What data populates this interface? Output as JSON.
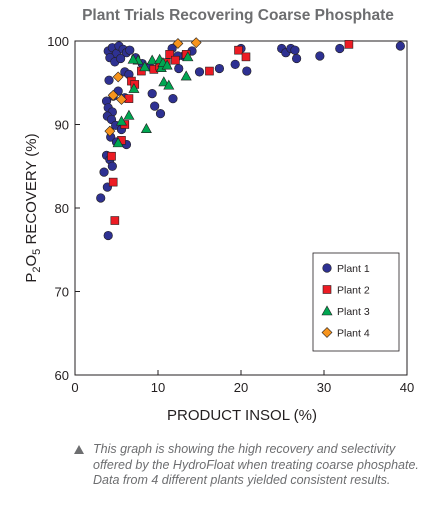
{
  "chart_data": {
    "type": "scatter",
    "title": "Plant Trials Recovering Coarse Phosphate",
    "xlabel": "PRODUCT INSOL (%)",
    "ylabel": {
      "p1": "P",
      "s1": "2",
      "p2": "O",
      "s2": "5",
      "p3": " RECOVERY (%)"
    },
    "xlim": [
      0,
      40
    ],
    "ylim": [
      60,
      100
    ],
    "xticks": [
      "0",
      "10",
      "20",
      "30",
      "40"
    ],
    "yticks": [
      "60",
      "70",
      "80",
      "90",
      "100"
    ],
    "legend_position": "lower-right",
    "grid": false,
    "series": [
      {
        "name": "Plant 1",
        "marker": "circle",
        "color": "#2e3192",
        "points": [
          [
            4.0,
            98.8
          ],
          [
            4.5,
            99.2
          ],
          [
            5.0,
            98.5
          ],
          [
            5.3,
            99.4
          ],
          [
            5.8,
            99.0
          ],
          [
            6.2,
            98.6
          ],
          [
            6.6,
            98.9
          ],
          [
            7.3,
            98.0
          ],
          [
            8.1,
            97.3
          ],
          [
            9.0,
            96.9
          ],
          [
            4.2,
            98.0
          ],
          [
            4.8,
            97.5
          ],
          [
            5.5,
            97.9
          ],
          [
            6.0,
            96.3
          ],
          [
            6.5,
            96.0
          ],
          [
            4.1,
            95.3
          ],
          [
            5.2,
            94.0
          ],
          [
            6.0,
            93.2
          ],
          [
            4.6,
            93.4
          ],
          [
            3.8,
            92.8
          ],
          [
            4.0,
            92.0
          ],
          [
            4.5,
            91.5
          ],
          [
            3.9,
            91.0
          ],
          [
            4.4,
            90.6
          ],
          [
            4.9,
            89.9
          ],
          [
            5.6,
            89.4
          ],
          [
            4.3,
            88.5
          ],
          [
            5.0,
            87.9
          ],
          [
            6.2,
            87.6
          ],
          [
            3.8,
            86.3
          ],
          [
            4.2,
            85.8
          ],
          [
            4.5,
            85.0
          ],
          [
            3.5,
            84.3
          ],
          [
            3.9,
            82.5
          ],
          [
            3.1,
            81.2
          ],
          [
            4.0,
            76.7
          ],
          [
            9.3,
            93.7
          ],
          [
            9.6,
            92.2
          ],
          [
            10.3,
            91.3
          ],
          [
            11.8,
            93.1
          ],
          [
            12.5,
            96.7
          ],
          [
            13.1,
            98.2
          ],
          [
            14.1,
            98.8
          ],
          [
            15.0,
            96.3
          ],
          [
            17.4,
            96.7
          ],
          [
            19.3,
            97.2
          ],
          [
            20.0,
            99.1
          ],
          [
            20.7,
            96.4
          ],
          [
            24.9,
            99.1
          ],
          [
            25.4,
            98.6
          ],
          [
            26.0,
            99.1
          ],
          [
            26.5,
            98.9
          ],
          [
            26.7,
            97.9
          ],
          [
            29.5,
            98.2
          ],
          [
            31.9,
            99.1
          ],
          [
            39.2,
            99.4
          ],
          [
            11.7,
            99.1
          ],
          [
            12.4,
            98.2
          ]
        ]
      },
      {
        "name": "Plant 2",
        "marker": "square",
        "color": "#ed1c24",
        "points": [
          [
            4.4,
            86.2
          ],
          [
            4.6,
            83.1
          ],
          [
            4.8,
            78.5
          ],
          [
            5.6,
            88.1
          ],
          [
            6.0,
            90.0
          ],
          [
            6.5,
            93.1
          ],
          [
            6.8,
            95.2
          ],
          [
            7.2,
            94.8
          ],
          [
            8.0,
            96.4
          ],
          [
            9.5,
            96.6
          ],
          [
            10.2,
            97.0
          ],
          [
            11.0,
            97.4
          ],
          [
            11.4,
            98.4
          ],
          [
            12.1,
            97.7
          ],
          [
            13.4,
            98.4
          ],
          [
            16.2,
            96.4
          ],
          [
            19.7,
            98.9
          ],
          [
            20.6,
            98.1
          ],
          [
            33.0,
            99.6
          ]
        ]
      },
      {
        "name": "Plant 3",
        "marker": "triangle",
        "color": "#00a651",
        "points": [
          [
            5.2,
            87.8
          ],
          [
            5.6,
            90.4
          ],
          [
            6.5,
            91.1
          ],
          [
            7.1,
            94.3
          ],
          [
            7.6,
            97.7
          ],
          [
            8.4,
            96.9
          ],
          [
            9.3,
            97.7
          ],
          [
            10.2,
            97.8
          ],
          [
            10.4,
            96.8
          ],
          [
            10.7,
            95.1
          ],
          [
            10.6,
            97.4
          ],
          [
            11.1,
            97.1
          ],
          [
            11.3,
            94.7
          ],
          [
            13.6,
            98.1
          ],
          [
            8.6,
            89.5
          ],
          [
            13.4,
            95.8
          ],
          [
            7.0,
            97.8
          ]
        ]
      },
      {
        "name": "Plant 4",
        "marker": "diamond",
        "color": "#f7941d",
        "points": [
          [
            4.2,
            89.2
          ],
          [
            4.6,
            93.5
          ],
          [
            5.2,
            95.7
          ],
          [
            5.6,
            93.0
          ],
          [
            12.4,
            99.7
          ],
          [
            14.6,
            99.8
          ]
        ]
      }
    ]
  },
  "caption": "This graph is showing the high recovery and selectivity offered by the HydroFloat when treating coarse phosphate. Data from 4 different plants yielded consistent results."
}
